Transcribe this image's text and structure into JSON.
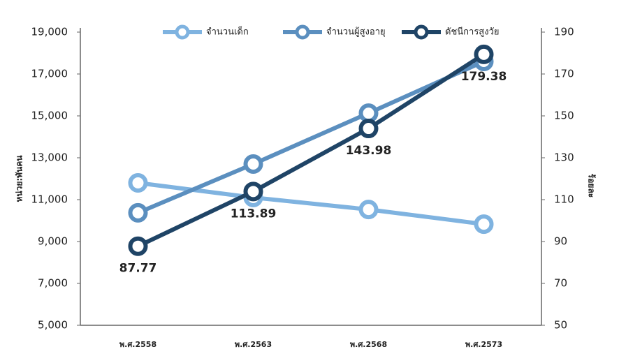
{
  "chart_data": {
    "type": "line",
    "categories": [
      "พ.ศ.2558",
      "พ.ศ.2563",
      "พ.ศ.2568",
      "พ.ศ.2573"
    ],
    "y_label": "หน่วย:พันคน",
    "y2_label": "ร้อยละ",
    "ylim": [
      5000,
      19000
    ],
    "yticks": [
      {
        "value": 5000,
        "label": "5,000"
      },
      {
        "value": 7000,
        "label": "7,000"
      },
      {
        "value": 9000,
        "label": "9,000"
      },
      {
        "value": 11000,
        "label": "11,000"
      },
      {
        "value": 13000,
        "label": "13,000"
      },
      {
        "value": 15000,
        "label": "15,000"
      },
      {
        "value": 17000,
        "label": "17,000"
      },
      {
        "value": 19000,
        "label": "19,000"
      }
    ],
    "y2lim": [
      50,
      190
    ],
    "y2ticks": [
      50,
      70,
      90,
      110,
      130,
      150,
      170,
      190
    ],
    "series": [
      {
        "name": "จำนวนเด็ก",
        "color": "#7fb3e0",
        "values": [
          11800,
          11100,
          10530,
          9830
        ]
      },
      {
        "name": "จำนวนผู้สูงอายุ",
        "color": "#5b8fbf",
        "values": [
          10370,
          12700,
          15130,
          17600
        ]
      },
      {
        "name": "ดัชนีการสูงวัย",
        "color": "#1f4466",
        "axis": "y2",
        "values": [
          87.77,
          113.89,
          143.98,
          179.38
        ],
        "show_labels": true
      }
    ],
    "grid": false
  }
}
